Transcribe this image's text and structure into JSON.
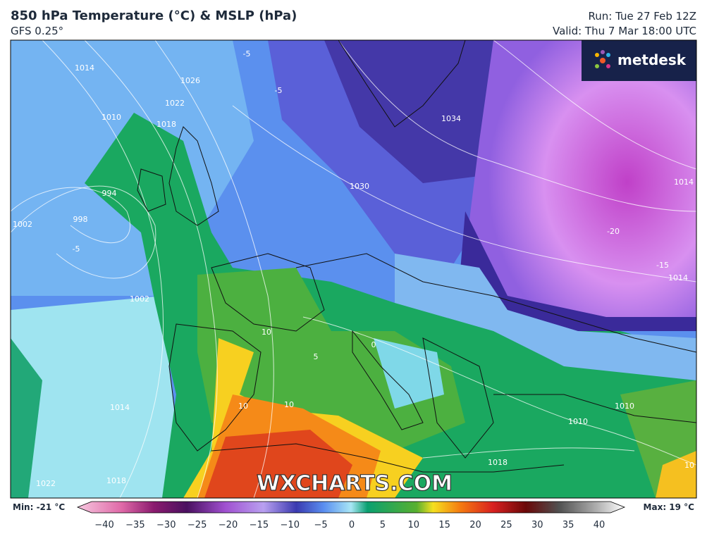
{
  "header": {
    "title": "850 hPa Temperature (°C) & MSLP (hPa)",
    "subtitle": "GFS 0.25°",
    "run": "Run: Tue 27 Feb 12Z",
    "valid": "Valid: Thu 7 Mar 18:00 UTC"
  },
  "brand": "metdesk",
  "watermark": "WXCHARTS.COM",
  "map_labels": [
    "1014",
    "1026",
    "1022",
    "1018",
    "1010",
    "994",
    "998",
    "1002",
    "1002",
    "1014",
    "1022",
    "1018",
    "-5",
    "-5",
    "-5",
    "1034",
    "1030",
    "-20",
    "-15",
    "1014",
    "1014",
    "10",
    "10",
    "10",
    "5",
    "0",
    "1010",
    "1018",
    "10",
    "1010"
  ],
  "colorbar": {
    "min_label": "Min: -21 °C",
    "max_label": "Max: 19 °C",
    "ticks": [
      "−40",
      "−35",
      "−30",
      "−25",
      "−20",
      "−15",
      "−10",
      "−5",
      "0",
      "5",
      "10",
      "15",
      "20",
      "25",
      "30",
      "35",
      "40"
    ]
  }
}
